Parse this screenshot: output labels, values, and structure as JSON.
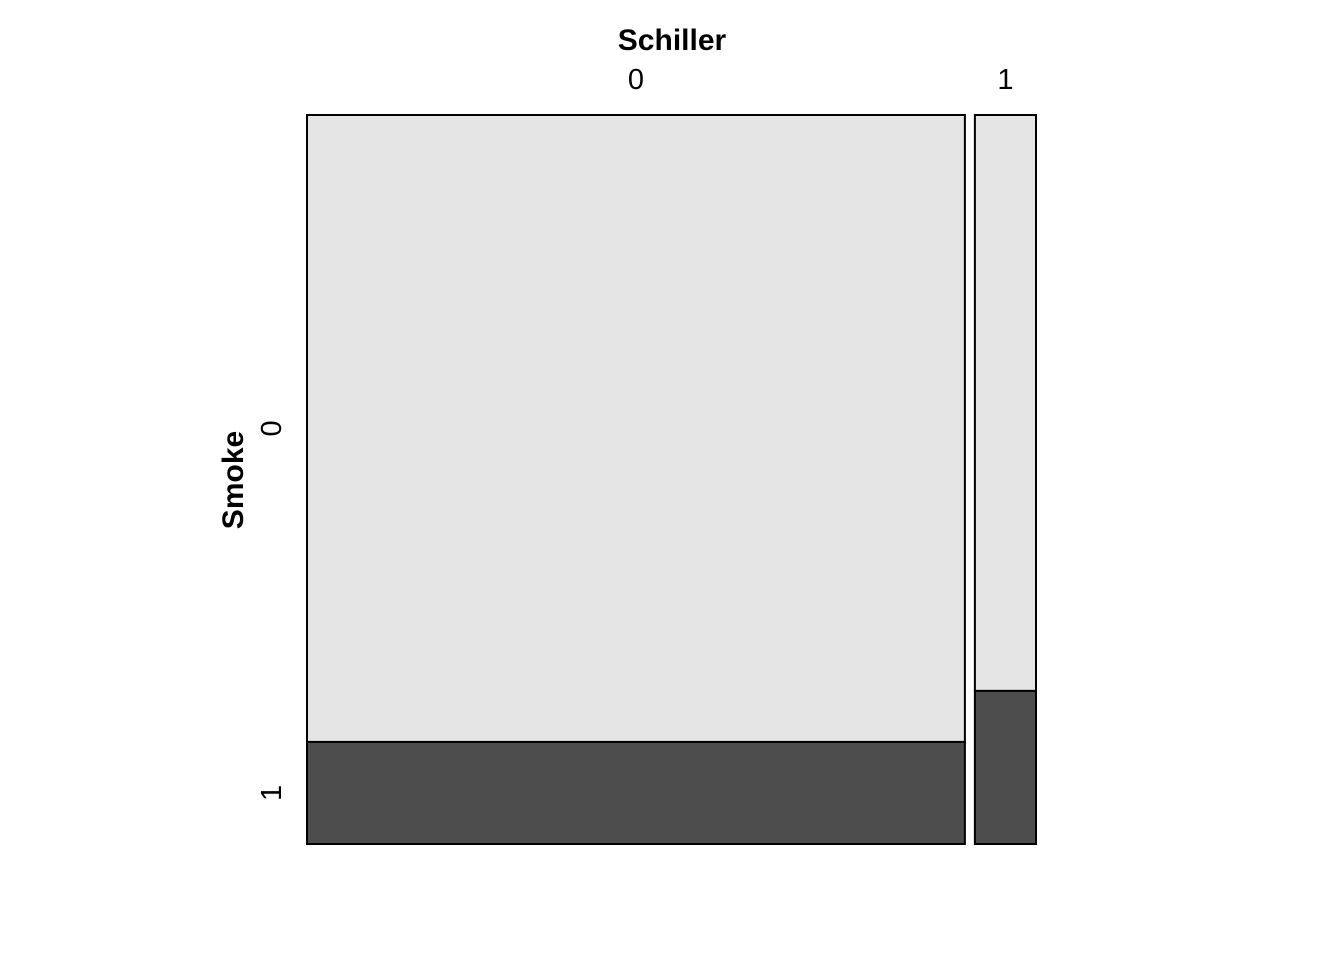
{
  "chart_data": {
    "type": "mosaic",
    "x_variable": "Schiller",
    "y_variable": "Smoke",
    "x_levels": [
      "0",
      "1"
    ],
    "y_levels": [
      "0",
      "1"
    ],
    "column_widths": [
      0.915,
      0.085
    ],
    "cells": [
      {
        "x_level": "0",
        "proportions": [
          0.86,
          0.14
        ]
      },
      {
        "x_level": "1",
        "proportions": [
          0.79,
          0.21
        ]
      }
    ],
    "fill_colors": {
      "0": "#e5e5e5",
      "1": "#4d4d4d"
    },
    "stroke_color": "#000000"
  }
}
